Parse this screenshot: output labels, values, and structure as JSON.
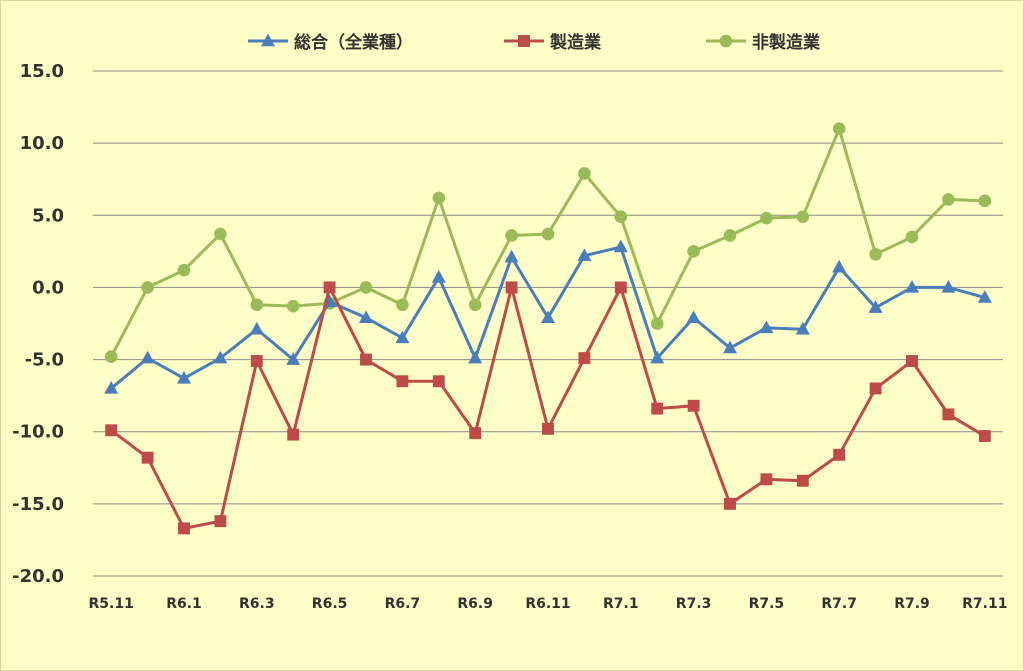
{
  "chart_data": {
    "type": "line",
    "title": "",
    "xlabel": "",
    "ylabel": "",
    "ylim": [
      -20,
      15
    ],
    "yticks": [
      "15.0",
      "10.0",
      "5.0",
      "0.0",
      "-5.0",
      "-10.0",
      "-15.0",
      "-20.0"
    ],
    "x": [
      "R5.11",
      "R5.12",
      "R6.1",
      "R6.2",
      "R6.3",
      "R6.4",
      "R6.5",
      "R6.6",
      "R6.7",
      "R6.8",
      "R6.9",
      "R6.10",
      "R6.11",
      "R6.12",
      "R7.1",
      "R7.2",
      "R7.3",
      "R7.4",
      "R7.5",
      "R7.6",
      "R7.7",
      "R7.8",
      "R7.9",
      "R7.10",
      "R7.11"
    ],
    "xtick_labels": [
      "R5.11",
      "",
      "R6.1",
      "",
      "R6.3",
      "",
      "R6.5",
      "",
      "R6.7",
      "",
      "R6.9",
      "",
      "R6.11",
      "",
      "R7.1",
      "",
      "R7.3",
      "",
      "R7.5",
      "",
      "R7.7",
      "",
      "R7.9",
      "",
      "R7.11"
    ],
    "grid": true,
    "legend_position": "top",
    "series": [
      {
        "name": "総合（全業種）",
        "color": "#4a7ebb",
        "marker": "triangle",
        "values": [
          -7.0,
          -4.9,
          -6.3,
          -4.9,
          -2.9,
          -5.0,
          -1.0,
          -2.1,
          -3.5,
          0.7,
          -4.9,
          2.1,
          -2.1,
          2.2,
          2.8,
          -4.9,
          -2.1,
          -4.2,
          -2.8,
          -2.9,
          1.4,
          -1.4,
          0.0,
          0.0,
          -0.7
        ]
      },
      {
        "name": "製造業",
        "color": "#be4b48",
        "marker": "square",
        "values": [
          -9.9,
          -11.8,
          -16.7,
          -16.2,
          -5.1,
          -10.2,
          0.0,
          -5.0,
          -6.5,
          -6.5,
          -10.1,
          0.0,
          -9.8,
          -4.9,
          0.0,
          -8.4,
          -8.2,
          -15.0,
          -13.3,
          -13.4,
          -11.6,
          -7.0,
          -5.1,
          -8.8,
          -10.3
        ]
      },
      {
        "name": "非製造業",
        "color": "#9bbb59",
        "marker": "circle",
        "values": [
          -4.8,
          0.0,
          1.2,
          3.7,
          -1.2,
          -1.3,
          -1.1,
          0.0,
          -1.2,
          6.2,
          -1.2,
          3.6,
          3.7,
          7.9,
          4.9,
          -2.5,
          2.5,
          3.6,
          4.8,
          4.9,
          11.0,
          2.3,
          3.5,
          6.1,
          6.0
        ]
      }
    ]
  }
}
